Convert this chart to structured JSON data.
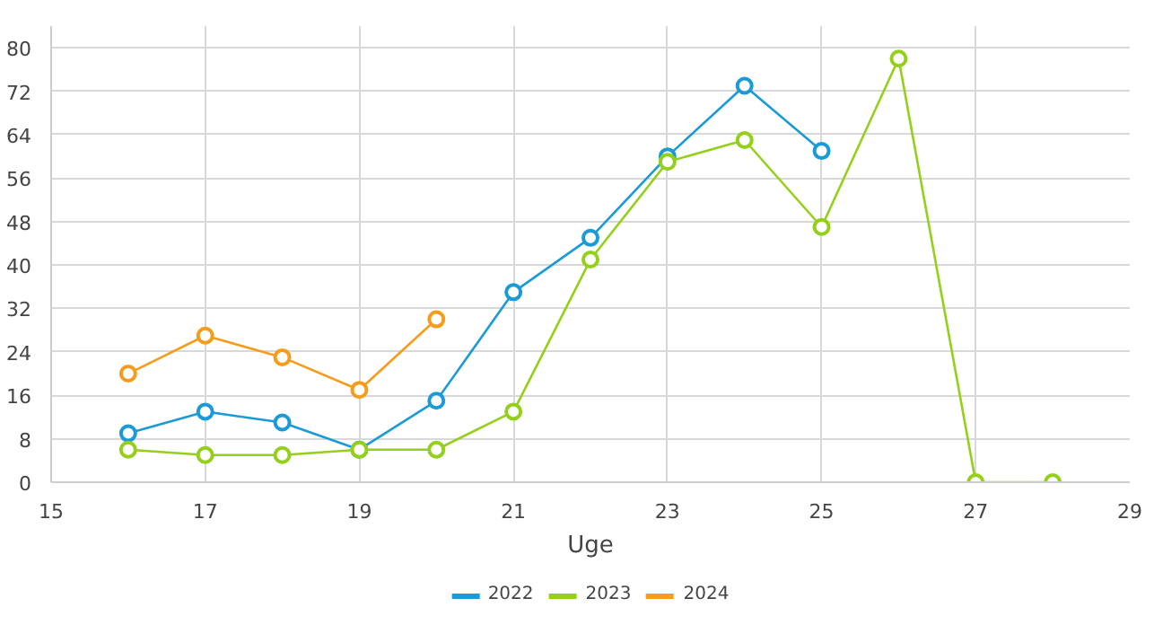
{
  "chart_data": {
    "type": "line",
    "xlabel": "Uge",
    "xlim": [
      15,
      29
    ],
    "xticks": [
      15,
      17,
      19,
      21,
      23,
      25,
      27,
      29
    ],
    "ylim": [
      0,
      84
    ],
    "yticks": [
      0,
      8,
      16,
      24,
      32,
      40,
      48,
      56,
      64,
      72,
      80
    ],
    "grid": true,
    "legend": "bottom",
    "marker": "circle",
    "line_style": "solid",
    "series": [
      {
        "name": "2022",
        "color": "#1a9ad6",
        "x": [
          16,
          17,
          18,
          19,
          20,
          21,
          22,
          23,
          24,
          25
        ],
        "values": [
          9,
          13,
          11,
          6,
          15,
          35,
          45,
          60,
          73,
          61
        ]
      },
      {
        "name": "2023",
        "color": "#94cf1a",
        "x": [
          16,
          17,
          18,
          19,
          20,
          21,
          22,
          23,
          24,
          25,
          26,
          27,
          28
        ],
        "values": [
          6,
          5,
          5,
          6,
          6,
          13,
          41,
          59,
          63,
          47,
          78,
          0,
          0
        ]
      },
      {
        "name": "2024",
        "color": "#f59c1a",
        "x": [
          16,
          17,
          18,
          19,
          20
        ],
        "values": [
          20,
          27,
          23,
          17,
          30
        ]
      }
    ]
  }
}
